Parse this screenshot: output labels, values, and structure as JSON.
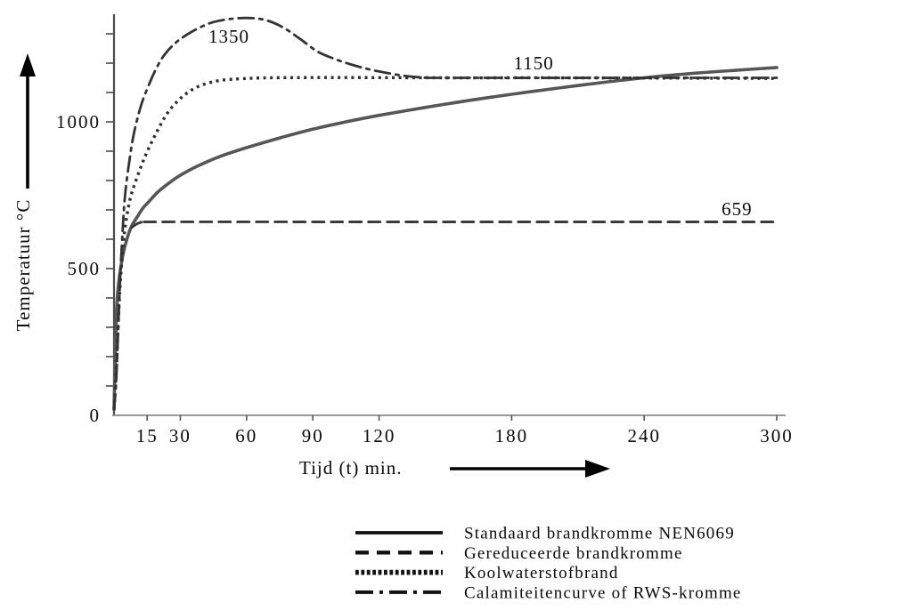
{
  "chart_data": {
    "type": "line",
    "title": "",
    "xlabel": "Tijd (t) min.",
    "ylabel": "Temperatuur °C",
    "xlim": [
      0,
      300
    ],
    "ylim": [
      0,
      1360
    ],
    "x_ticks": [
      15,
      30,
      60,
      90,
      120,
      180,
      240,
      300
    ],
    "y_tick_labels": [
      0,
      500,
      1000
    ],
    "y_minor_tick_step": 100,
    "grid": false,
    "legend_position": "below-plot-right",
    "colors": {
      "standard": "#565656",
      "reduced": "#3a3a3a",
      "hydrocarbon": "#2c2c2c",
      "rws": "#333333",
      "axis": "#8a8a8a",
      "text": "#0a0a0a"
    },
    "series": [
      {
        "name": "standard",
        "legend_label": "Standaard brandkromme NEN6069",
        "style": "solid",
        "points": [
          [
            0,
            20
          ],
          [
            1,
            330
          ],
          [
            2,
            445
          ],
          [
            4,
            545
          ],
          [
            6,
            605
          ],
          [
            8,
            645
          ],
          [
            10,
            670
          ],
          [
            13,
            705
          ],
          [
            16,
            730
          ],
          [
            20,
            762
          ],
          [
            25,
            792
          ],
          [
            30,
            818
          ],
          [
            38,
            850
          ],
          [
            48,
            882
          ],
          [
            60,
            912
          ],
          [
            75,
            945
          ],
          [
            90,
            975
          ],
          [
            105,
            1000
          ],
          [
            120,
            1022
          ],
          [
            140,
            1048
          ],
          [
            160,
            1072
          ],
          [
            180,
            1094
          ],
          [
            200,
            1114
          ],
          [
            220,
            1133
          ],
          [
            240,
            1150
          ],
          [
            260,
            1164
          ],
          [
            280,
            1175
          ],
          [
            300,
            1185
          ]
        ]
      },
      {
        "name": "reduced",
        "legend_label": "Gereduceerde brandkromme",
        "style": "dashed",
        "points": [
          [
            8,
            640
          ],
          [
            12,
            657
          ],
          [
            20,
            659
          ],
          [
            100,
            659
          ],
          [
            200,
            659
          ],
          [
            300,
            659
          ]
        ]
      },
      {
        "name": "hydrocarbon",
        "legend_label": "Koolwaterstofbrand",
        "style": "dotted",
        "points": [
          [
            0,
            20
          ],
          [
            1,
            150
          ],
          [
            2,
            330
          ],
          [
            3,
            470
          ],
          [
            4,
            570
          ],
          [
            5,
            640
          ],
          [
            7,
            728
          ],
          [
            9,
            780
          ],
          [
            12,
            843
          ],
          [
            15,
            898
          ],
          [
            19,
            960
          ],
          [
            24,
            1028
          ],
          [
            29,
            1072
          ],
          [
            34,
            1103
          ],
          [
            40,
            1126
          ],
          [
            48,
            1141
          ],
          [
            58,
            1147
          ],
          [
            70,
            1150
          ],
          [
            100,
            1151
          ],
          [
            150,
            1150
          ],
          [
            200,
            1150
          ],
          [
            250,
            1149
          ],
          [
            300,
            1148
          ]
        ]
      },
      {
        "name": "rws",
        "legend_label": "Calamiteitencurve of RWS-kromme",
        "style": "dashdot",
        "points": [
          [
            0,
            20
          ],
          [
            1,
            120
          ],
          [
            2,
            320
          ],
          [
            3,
            500
          ],
          [
            4,
            640
          ],
          [
            5,
            750
          ],
          [
            7,
            870
          ],
          [
            9,
            960
          ],
          [
            12,
            1050
          ],
          [
            15,
            1112
          ],
          [
            19,
            1180
          ],
          [
            23,
            1230
          ],
          [
            28,
            1270
          ],
          [
            33,
            1297
          ],
          [
            39,
            1322
          ],
          [
            45,
            1340
          ],
          [
            52,
            1350
          ],
          [
            60,
            1354
          ],
          [
            68,
            1348
          ],
          [
            76,
            1324
          ],
          [
            84,
            1284
          ],
          [
            92,
            1240
          ],
          [
            100,
            1214
          ],
          [
            108,
            1194
          ],
          [
            116,
            1178
          ],
          [
            124,
            1166
          ],
          [
            132,
            1156
          ],
          [
            141,
            1151
          ],
          [
            155,
            1150
          ],
          [
            300,
            1150
          ]
        ]
      }
    ],
    "annotations": [
      {
        "text": "1350",
        "t": 52,
        "T": 1291
      },
      {
        "text": "1150",
        "t": 190,
        "T": 1200
      },
      {
        "text": "659",
        "t": 282,
        "T": 703
      }
    ]
  }
}
